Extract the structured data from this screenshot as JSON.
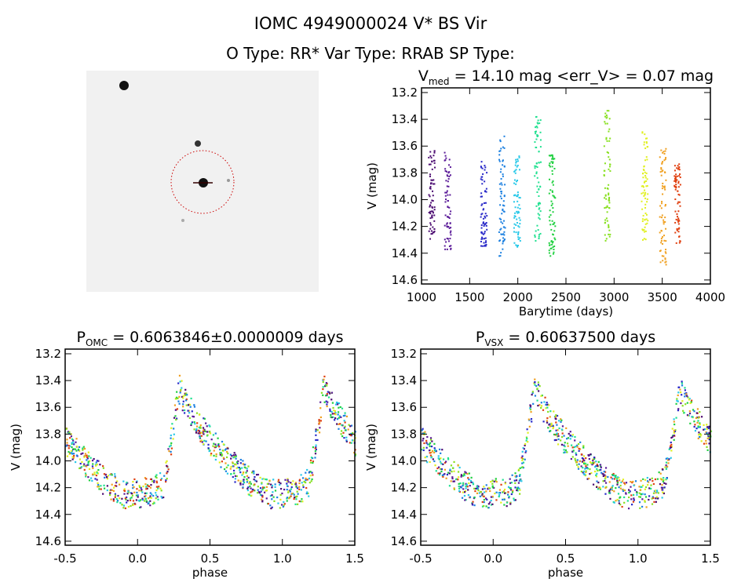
{
  "title": "IOMC 4949000024     V* BS Vir",
  "subtitle": "O Type: RR*   Var Type: RRAB   SP Type:",
  "finder_image": {
    "circle_color": "#cc0000"
  },
  "chart_data": [
    {
      "type": "scatter",
      "title_main": "V",
      "title_sub": "med",
      "title_rest": " = 14.10 mag <err_V> = 0.07 mag",
      "xlabel": "Barytime (days)",
      "ylabel": "V (mag)",
      "xlim": [
        1000,
        4000
      ],
      "ylim": [
        13.165,
        14.63
      ],
      "y_inverted": true,
      "xticks": [
        "1000",
        "1500",
        "2000",
        "2500",
        "3000",
        "3500",
        "4000"
      ],
      "yticks": [
        "13.2",
        "13.4",
        "13.6",
        "13.8",
        "14.0",
        "14.2",
        "14.4",
        "14.6"
      ],
      "segments": [
        {
          "x": 1100,
          "ymin": 13.63,
          "ymax": 14.29,
          "color": "#4a0a70"
        },
        {
          "x": 1265,
          "ymin": 13.64,
          "ymax": 14.37,
          "color": "#5a1a98"
        },
        {
          "x": 1640,
          "ymin": 13.71,
          "ymax": 14.37,
          "color": "#2828c8"
        },
        {
          "x": 1830,
          "ymin": 13.52,
          "ymax": 14.42,
          "color": "#1c80e0"
        },
        {
          "x": 1985,
          "ymin": 13.66,
          "ymax": 14.35,
          "color": "#28c8e8"
        },
        {
          "x": 2200,
          "ymin": 13.37,
          "ymax": 14.33,
          "color": "#20e090"
        },
        {
          "x": 2350,
          "ymin": 13.66,
          "ymax": 14.43,
          "color": "#20d040"
        },
        {
          "x": 2920,
          "ymin": 13.33,
          "ymax": 14.31,
          "color": "#88e020"
        },
        {
          "x": 3310,
          "ymin": 13.48,
          "ymax": 14.31,
          "color": "#e0f020"
        },
        {
          "x": 3500,
          "ymin": 13.61,
          "ymax": 14.48,
          "color": "#f0a020"
        },
        {
          "x": 3650,
          "ymin": 13.72,
          "ymax": 14.33,
          "color": "#e04010"
        }
      ]
    },
    {
      "type": "scatter",
      "title_main": "P",
      "title_sub": "OMC",
      "title_rest": " = 0.6063846±0.0000009 days",
      "xlabel": "phase",
      "ylabel": "V (mag)",
      "xlim": [
        -0.5,
        1.5
      ],
      "ylim": [
        13.165,
        14.63
      ],
      "y_inverted": true,
      "xticks": [
        "-0.5",
        "0.0",
        "0.5",
        "1.0",
        "1.5"
      ],
      "yticks": [
        "13.2",
        "13.4",
        "13.6",
        "13.8",
        "14.0",
        "14.2",
        "14.4",
        "14.6"
      ],
      "light_curve_template": [
        [
          0.0,
          14.24
        ],
        [
          0.1,
          14.22
        ],
        [
          0.18,
          14.15
        ],
        [
          0.24,
          13.75
        ],
        [
          0.28,
          13.45
        ],
        [
          0.32,
          13.55
        ],
        [
          0.4,
          13.7
        ],
        [
          0.5,
          13.85
        ],
        [
          0.6,
          13.97
        ],
        [
          0.7,
          14.08
        ],
        [
          0.8,
          14.18
        ],
        [
          0.9,
          14.24
        ],
        [
          1.0,
          14.24
        ]
      ]
    },
    {
      "type": "scatter",
      "title_main": "P",
      "title_sub": "VSX",
      "title_rest": " = 0.60637500 days",
      "xlabel": "phase",
      "ylabel": "V (mag)",
      "xlim": [
        -0.5,
        1.5
      ],
      "ylim": [
        13.165,
        14.63
      ],
      "y_inverted": true,
      "xticks": [
        "-0.5",
        "0.0",
        "0.5",
        "1.0",
        "1.5"
      ],
      "yticks": [
        "13.2",
        "13.4",
        "13.6",
        "13.8",
        "14.0",
        "14.2",
        "14.4",
        "14.6"
      ],
      "light_curve_template": [
        [
          0.0,
          14.24
        ],
        [
          0.1,
          14.22
        ],
        [
          0.18,
          14.15
        ],
        [
          0.24,
          13.75
        ],
        [
          0.28,
          13.45
        ],
        [
          0.32,
          13.55
        ],
        [
          0.4,
          13.7
        ],
        [
          0.5,
          13.85
        ],
        [
          0.6,
          13.97
        ],
        [
          0.7,
          14.08
        ],
        [
          0.8,
          14.18
        ],
        [
          0.9,
          14.24
        ],
        [
          1.0,
          14.24
        ]
      ]
    }
  ]
}
